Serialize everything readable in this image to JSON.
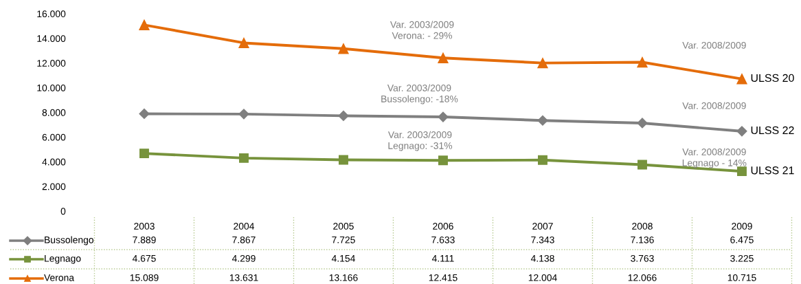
{
  "chart_data": {
    "type": "line",
    "categories": [
      "2003",
      "2004",
      "2005",
      "2006",
      "2007",
      "2008",
      "2009"
    ],
    "ylim": [
      0,
      16000
    ],
    "yticks": [
      0,
      {
        "value": 2000,
        "label": "2.000"
      },
      {
        "value": 4000,
        "label": "4.000"
      },
      {
        "value": 6000,
        "label": "6.000"
      },
      {
        "value": 8000,
        "label": "8.000"
      },
      {
        "value": 10000,
        "label": "10.000"
      },
      {
        "value": 12000,
        "label": "12.000"
      },
      {
        "value": 14000,
        "label": "14.000"
      },
      {
        "value": 16000,
        "label": "16.000"
      }
    ],
    "series": [
      {
        "name": "Bussolengo",
        "color": "#7f7f7f",
        "marker": "diamond",
        "values": [
          7889,
          7867,
          7725,
          7633,
          7343,
          7136,
          6475
        ],
        "value_labels": [
          "7.889",
          "7.867",
          "7.725",
          "7.633",
          "7.343",
          "7.136",
          "6.475"
        ]
      },
      {
        "name": "Legnago",
        "color": "#77933c",
        "marker": "square",
        "values": [
          4675,
          4299,
          4154,
          4111,
          4138,
          3763,
          3225
        ],
        "value_labels": [
          "4.675",
          "4.299",
          "4.154",
          "4.111",
          "4.138",
          "3.763",
          "3.225"
        ]
      },
      {
        "name": "Verona",
        "color": "#e46c0a",
        "marker": "triangle",
        "values": [
          15089,
          13631,
          13166,
          12415,
          12004,
          12066,
          10715
        ],
        "value_labels": [
          "15.089",
          "13.631",
          "13.166",
          "12.415",
          "12.004",
          "12.066",
          "10.715"
        ]
      }
    ],
    "legend": "bottom",
    "grid": false,
    "line_style": "solid",
    "annotations": [
      "Var. 2003/2009\nVerona: - 29%",
      "Var. 2008/2009",
      "Var. 2003/2009\nBussolengo: -18%",
      "Var. 2008/2009",
      "Var. 2003/2009\nLegnago: -31%",
      "Var. 2008/2009\nLegnago - 14%",
      {
        "text": "ULSS 20",
        "x": "2009",
        "y": 10715
      },
      {
        "text": "ULSS 22",
        "x": "2009",
        "y": 6475
      },
      {
        "text": "ULSS 21",
        "x": "2009",
        "y": 3225
      }
    ]
  }
}
